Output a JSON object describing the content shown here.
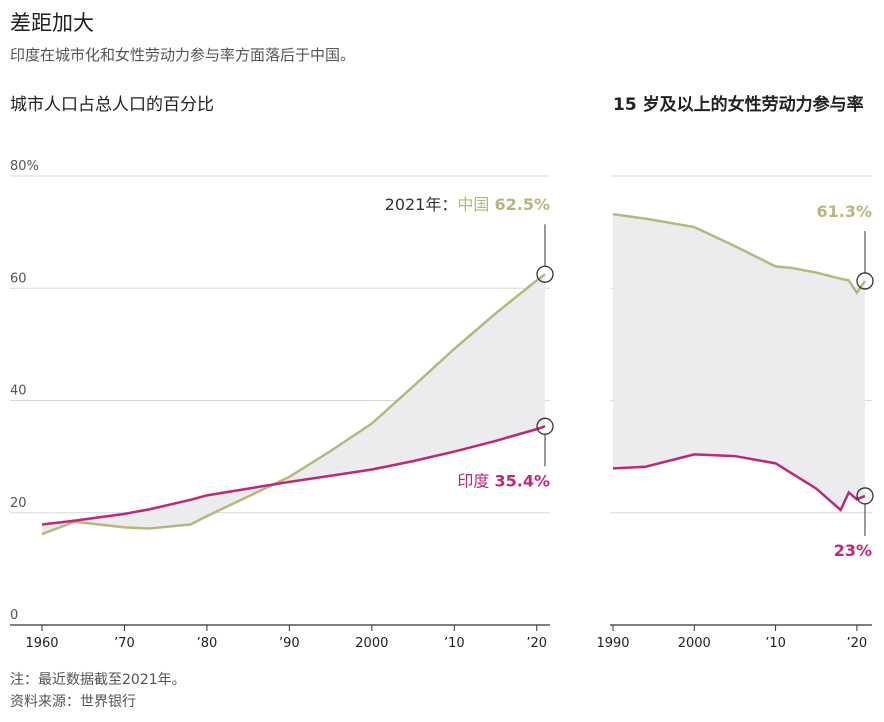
{
  "title": "差距加大",
  "subtitle": "印度在城市化和女性劳动力参与率方面落后于中国。",
  "note": "注：最近数据截至2021年。",
  "source": "资料来源：世界银行",
  "chart_data": [
    {
      "type": "line",
      "title": "城市人口占总人口的百分比",
      "annotation": "2021年：",
      "x": [
        1960,
        1964,
        1970,
        1973,
        1978,
        1980,
        1985,
        1990,
        1995,
        2000,
        2005,
        2010,
        2015,
        2020,
        2021
      ],
      "series": [
        {
          "name": "中国",
          "color": "#b7b77a",
          "values": [
            16.2,
            18.4,
            17.4,
            17.2,
            17.9,
            19.4,
            22.9,
            26.4,
            31.0,
            35.9,
            42.5,
            49.2,
            55.5,
            61.4,
            62.5
          ],
          "end_label": "62.5%"
        },
        {
          "name": "印度",
          "color": "#c0267a",
          "values": [
            17.9,
            18.6,
            19.8,
            20.6,
            22.3,
            23.1,
            24.3,
            25.5,
            26.6,
            27.7,
            29.2,
            30.9,
            32.8,
            34.9,
            35.4
          ],
          "end_label": "35.4%"
        }
      ],
      "xlim": [
        1959,
        2022
      ],
      "xticks": [
        1960,
        {
          "value": 1970,
          "label": "’70"
        },
        {
          "value": 1980,
          "label": "’80"
        },
        {
          "value": 1990,
          "label": "’90"
        },
        2000,
        {
          "value": 2010,
          "label": "’10"
        },
        {
          "value": 2020,
          "label": "’20"
        }
      ],
      "ylim": [
        0,
        80
      ],
      "yticks": [
        0,
        20,
        40,
        60,
        {
          "value": 80,
          "label": "80%"
        }
      ],
      "grid": true
    },
    {
      "type": "line",
      "title": "15 岁及以上的女性劳动力参与率",
      "x": [
        1990,
        1994,
        2000,
        2005,
        2010,
        2012,
        2015,
        2018,
        2019,
        2020,
        2021
      ],
      "series": [
        {
          "name": "中国",
          "color": "#b7b77a",
          "values": [
            73.2,
            72.4,
            70.9,
            67.5,
            63.9,
            63.6,
            62.8,
            61.7,
            61.4,
            59.2,
            61.3
          ],
          "end_label": "61.3%"
        },
        {
          "name": "印度",
          "color": "#c0267a",
          "values": [
            27.9,
            28.2,
            30.4,
            30.1,
            28.8,
            27.0,
            24.3,
            20.5,
            23.6,
            22.4,
            23
          ],
          "end_label": "23%"
        }
      ],
      "xlim": [
        1989.6,
        2022
      ],
      "xticks": [
        1990,
        2000,
        {
          "value": 2010,
          "label": "’10"
        },
        {
          "value": 2020,
          "label": "’20"
        }
      ],
      "ylim": [
        0,
        80
      ],
      "grid": true
    }
  ]
}
